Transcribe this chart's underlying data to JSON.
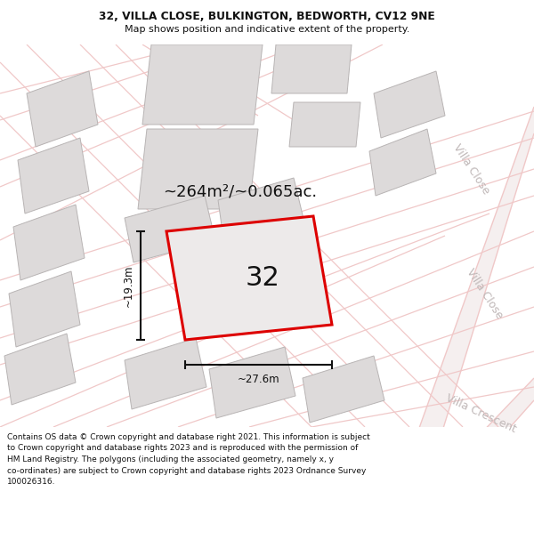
{
  "title_line1": "32, VILLA CLOSE, BULKINGTON, BEDWORTH, CV12 9NE",
  "title_line2": "Map shows position and indicative extent of the property.",
  "footer_text": "Contains OS data © Crown copyright and database right 2021. This information is subject to Crown copyright and database rights 2023 and is reproduced with the permission of HM Land Registry. The polygons (including the associated geometry, namely x, y co-ordinates) are subject to Crown copyright and database rights 2023 Ordnance Survey 100026316.",
  "area_label": "~264m²/~0.065ac.",
  "plot_number": "32",
  "dim_width": "~27.6m",
  "dim_height": "~19.3m",
  "road_label_close": "Villa Close",
  "road_label_crescent": "Villa Crescent",
  "map_bg": "#f8f5f5",
  "plot_fill": "#edeaea",
  "plot_border": "#dd0000",
  "building_fill": "#dddada",
  "building_border": "#b8b4b4",
  "road_line": "#f0c8c8",
  "road_fill": "#f5efef",
  "dim_color": "#111111",
  "road_text_color": "#c0b8b8",
  "title_color": "#111111",
  "footer_color": "#111111"
}
